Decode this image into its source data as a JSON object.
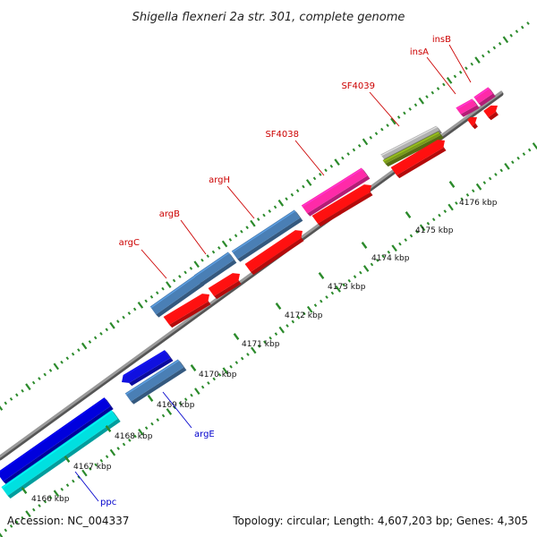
{
  "title": "Shigella flexneri 2a str. 301, complete genome",
  "footer": {
    "accession": "Accession: NC_004337",
    "summary": "Topology: circular; Length: 4,607,203 bp; Genes: 4,305"
  },
  "colors": {
    "backbone": "#8c8c8c",
    "tick": "#2b8a2b",
    "label_forward": "#cc0000",
    "label_reverse": "#0000cc"
  },
  "scale_labels": [
    "4166 kbp",
    "4167 kbp",
    "4168 kbp",
    "4169 kbp",
    "4170 kbp",
    "4171 kbp",
    "4172 kbp",
    "4173 kbp",
    "4174 kbp",
    "4175 kbp",
    "4176 kbp"
  ],
  "genes": [
    {
      "name": "ppc",
      "strand": "reverse"
    },
    {
      "name": "argE",
      "strand": "reverse"
    },
    {
      "name": "argC",
      "strand": "forward"
    },
    {
      "name": "argB",
      "strand": "forward"
    },
    {
      "name": "argH",
      "strand": "forward"
    },
    {
      "name": "SF4038",
      "strand": "forward"
    },
    {
      "name": "SF4039",
      "strand": "forward"
    },
    {
      "name": "insA",
      "strand": "forward"
    },
    {
      "name": "insB",
      "strand": "forward"
    }
  ]
}
